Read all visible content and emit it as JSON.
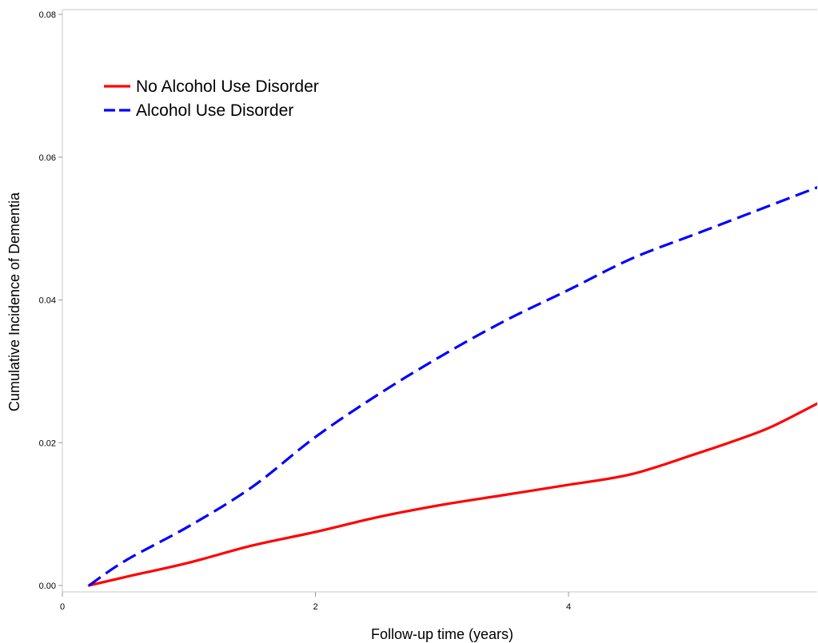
{
  "chart_data": {
    "type": "line",
    "title": "",
    "xlabel": "Follow-up time (years)",
    "ylabel": "Cumulative Incidence of Dementia",
    "xlim": [
      0,
      6
    ],
    "ylim": [
      0,
      0.08
    ],
    "xticks": [
      "0",
      "2",
      "4"
    ],
    "yticks": [
      "0.00",
      "0.02",
      "0.04",
      "0.06",
      "0.08"
    ],
    "legend_position": "top-left",
    "grid": false,
    "series": [
      {
        "name": "No Alcohol Use Disorder",
        "color": "#ff0000",
        "style": "solid",
        "x": [
          0.21,
          0.5,
          1.0,
          1.5,
          2.0,
          2.5,
          3.0,
          3.5,
          4.0,
          4.5,
          5.0,
          5.3,
          5.6,
          6.0
        ],
        "y": [
          0.0,
          0.0012,
          0.0032,
          0.0056,
          0.0075,
          0.0096,
          0.0113,
          0.0127,
          0.0141,
          0.0156,
          0.0184,
          0.0202,
          0.0222,
          0.0258
        ]
      },
      {
        "name": "Alcohol Use Disorder",
        "color": "#0000ff",
        "style": "dashed",
        "x": [
          0.21,
          0.5,
          1.0,
          1.5,
          2.0,
          2.5,
          3.0,
          3.5,
          4.0,
          4.5,
          5.0,
          5.5,
          6.0
        ],
        "y": [
          0.0,
          0.0035,
          0.0083,
          0.0138,
          0.0208,
          0.0268,
          0.0322,
          0.0371,
          0.0414,
          0.0458,
          0.0492,
          0.0526,
          0.056
        ]
      }
    ]
  }
}
